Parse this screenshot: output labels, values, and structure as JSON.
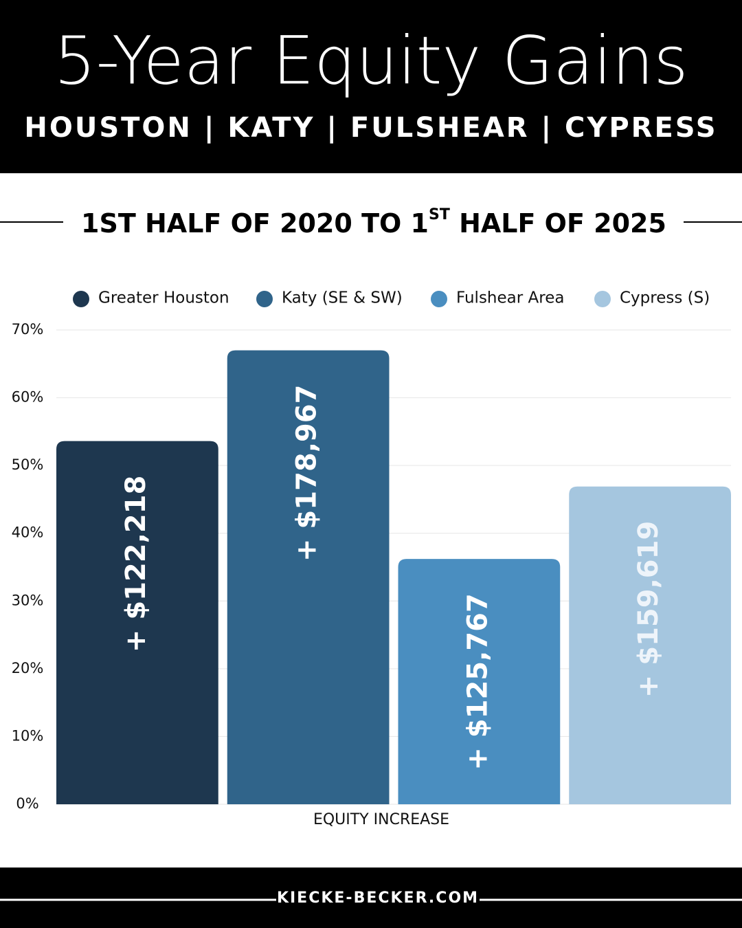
{
  "chart_data": {
    "type": "bar",
    "header_title": "5-Year Equity Gains",
    "header_subtitle": "HOUSTON | KATY | FULSHEAR | CYPRESS",
    "title_parts": [
      "1ST HALF OF 2020 TO 1",
      "ST",
      " HALF OF 2025"
    ],
    "categories": [
      "EQUITY INCREASE"
    ],
    "series": [
      {
        "name": "Greater Houston",
        "color": "#1e374f",
        "values": [
          53.6
        ]
      },
      {
        "name": "Katy (SE & SW)",
        "color": "#30648a",
        "values": [
          67
        ]
      },
      {
        "name": "Fulshear Area",
        "color": "#4a8ec0",
        "values": [
          36.2
        ]
      },
      {
        "name": "Cypress (S)",
        "color": "#a5c6df",
        "values": [
          46.9
        ]
      }
    ],
    "bar_annotations": [
      "+ $122,218",
      "+ $178,967",
      "+ $125,767",
      "+ $159,619"
    ],
    "ylim": [
      0,
      70
    ],
    "yticks": [
      {
        "value": 0,
        "label": "0%"
      },
      {
        "value": 10,
        "label": "10%"
      },
      {
        "value": 20,
        "label": "20%"
      },
      {
        "value": 30,
        "label": "30%"
      },
      {
        "value": 40,
        "label": "40%"
      },
      {
        "value": 50,
        "label": "50%"
      },
      {
        "value": 60,
        "label": "60%"
      },
      {
        "value": 70,
        "label": "70%"
      }
    ],
    "grid": true,
    "legend": "top",
    "footer": "KIECKE-BECKER.COM"
  }
}
